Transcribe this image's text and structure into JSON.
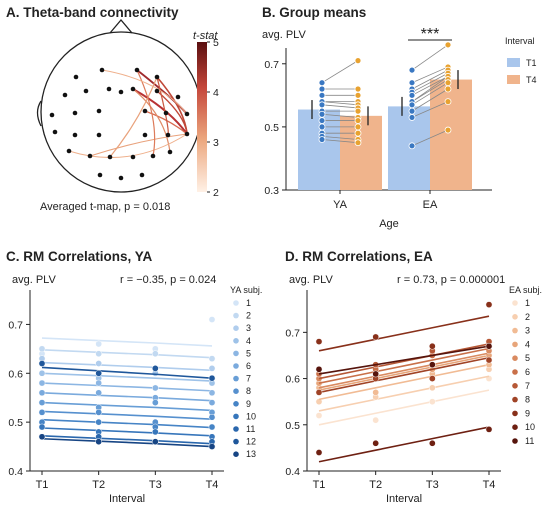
{
  "panels": {
    "a": {
      "title": "A. Theta-band connectivity",
      "caption": "Averaged t-map, p = 0.018",
      "colorbar": {
        "label": "t-stat",
        "ticks": [
          "5",
          "4",
          "3",
          "2"
        ],
        "range": [
          2,
          5
        ]
      }
    },
    "b": {
      "title": "B. Group means"
    },
    "c": {
      "title": "C. RM Correlations, YA"
    },
    "d": {
      "title": "D. RM Correlations, EA"
    }
  },
  "chart_data": [
    {
      "panel": "A",
      "type": "other",
      "description_of_marks": "Head topomap with electrode dots and significant connections colored by t-stat",
      "colorbar_label": "t-stat",
      "colorbar_range": [
        2,
        5
      ],
      "caption": "Averaged t-map, p = 0.018"
    },
    {
      "panel": "B",
      "type": "bar",
      "title": "B. Group means",
      "ylabel": "avg. PLV",
      "xlabel": "Age",
      "categories": [
        "YA",
        "EA"
      ],
      "ylim": [
        0.3,
        0.75
      ],
      "yticks": [
        "0.3",
        "0.5",
        "0.7"
      ],
      "legend_title": "Interval",
      "significance": "***",
      "series": [
        {
          "name": "T1",
          "color": "#a9c6ec",
          "values": [
            0.555,
            0.565
          ],
          "err": [
            0.03,
            0.03
          ],
          "points": [
            [
              0.64,
              0.62,
              0.6,
              0.58,
              0.58,
              0.57,
              0.55,
              0.54,
              0.52,
              0.5,
              0.48,
              0.47,
              0.46
            ],
            [
              0.68,
              0.64,
              0.62,
              0.61,
              0.6,
              0.58,
              0.58,
              0.57,
              0.55,
              0.53,
              0.44
            ]
          ]
        },
        {
          "name": "T4",
          "color": "#f0b48c",
          "values": [
            0.535,
            0.65
          ],
          "err": [
            0.03,
            0.03
          ],
          "points": [
            [
              0.71,
              0.62,
              0.6,
              0.58,
              0.57,
              0.56,
              0.55,
              0.53,
              0.52,
              0.5,
              0.48,
              0.46,
              0.45
            ],
            [
              0.76,
              0.69,
              0.68,
              0.67,
              0.66,
              0.66,
              0.65,
              0.64,
              0.62,
              0.58,
              0.49
            ]
          ]
        }
      ]
    },
    {
      "panel": "C",
      "type": "line",
      "title": "C. RM Correlations, YA",
      "ylabel": "avg. PLV",
      "xlabel": "Interval",
      "stat_text": "r = −0.35, p = 0.024",
      "x": [
        "T1",
        "T2",
        "T3",
        "T4"
      ],
      "ylim": [
        0.4,
        0.75
      ],
      "yticks": [
        "0.4",
        "0.5",
        "0.6",
        "0.7"
      ],
      "legend_title": "YA subj.",
      "series": [
        {
          "name": "1",
          "color": "#d4e5f7",
          "line": [
            0.672,
            0.667,
            0.662,
            0.656
          ],
          "points": [
            0.64,
            0.66,
            0.65,
            0.71
          ]
        },
        {
          "name": "2",
          "color": "#c2d9f1",
          "line": [
            0.648,
            0.643,
            0.638,
            0.632
          ],
          "points": [
            0.65,
            0.64,
            0.64,
            0.63
          ]
        },
        {
          "name": "3",
          "color": "#b0cded",
          "line": [
            0.622,
            0.617,
            0.612,
            0.606
          ],
          "points": [
            0.63,
            0.62,
            0.6,
            0.61
          ]
        },
        {
          "name": "4",
          "color": "#9ec2e8",
          "line": [
            0.6,
            0.595,
            0.59,
            0.584
          ],
          "points": [
            0.6,
            0.59,
            0.6,
            0.58
          ]
        },
        {
          "name": "5",
          "color": "#8cb6e3",
          "line": [
            0.58,
            0.575,
            0.57,
            0.564
          ],
          "points": [
            0.58,
            0.58,
            0.57,
            0.56
          ]
        },
        {
          "name": "6",
          "color": "#7aaadd",
          "line": [
            0.56,
            0.555,
            0.55,
            0.544
          ],
          "points": [
            0.56,
            0.56,
            0.55,
            0.54
          ]
        },
        {
          "name": "7",
          "color": "#689ed6",
          "line": [
            0.54,
            0.535,
            0.53,
            0.524
          ],
          "points": [
            0.54,
            0.53,
            0.54,
            0.52
          ]
        },
        {
          "name": "8",
          "color": "#5690ce",
          "line": [
            0.522,
            0.517,
            0.512,
            0.506
          ],
          "points": [
            0.52,
            0.52,
            0.5,
            0.51
          ]
        },
        {
          "name": "9",
          "color": "#4684c6",
          "line": [
            0.505,
            0.5,
            0.495,
            0.489
          ],
          "points": [
            0.5,
            0.5,
            0.49,
            0.49
          ]
        },
        {
          "name": "10",
          "color": "#3776bb",
          "line": [
            0.488,
            0.483,
            0.478,
            0.472
          ],
          "points": [
            0.49,
            0.48,
            0.48,
            0.47
          ]
        },
        {
          "name": "11",
          "color": "#2a67ad",
          "line": [
            0.472,
            0.467,
            0.462,
            0.456
          ],
          "points": [
            0.47,
            0.47,
            0.46,
            0.46
          ]
        },
        {
          "name": "12",
          "color": "#1f579b",
          "line": [
            0.612,
            0.605,
            0.598,
            0.59
          ],
          "points": [
            0.62,
            0.6,
            0.61,
            0.59
          ]
        },
        {
          "name": "13",
          "color": "#174584",
          "line": [
            0.466,
            0.461,
            0.456,
            0.45
          ],
          "points": [
            0.47,
            0.46,
            0.46,
            0.45
          ]
        }
      ]
    },
    {
      "panel": "D",
      "type": "line",
      "title": "D. RM Correlations, EA",
      "ylabel": "avg. PLV",
      "xlabel": "Interval",
      "stat_text": "r = 0.73, p = 0.000001",
      "x": [
        "T1",
        "T2",
        "T3",
        "T4"
      ],
      "ylim": [
        0.4,
        0.77
      ],
      "yticks": [
        "0.4",
        "0.5",
        "0.6",
        "0.7"
      ],
      "legend_title": "EA subj.",
      "series": [
        {
          "name": "1",
          "color": "#fbe3d0",
          "line": [
            0.5,
            0.525,
            0.55,
            0.575
          ],
          "points": [
            0.52,
            0.51,
            0.55,
            0.6
          ]
        },
        {
          "name": "2",
          "color": "#f7cfb0",
          "line": [
            0.53,
            0.555,
            0.58,
            0.605
          ],
          "points": [
            0.55,
            0.56,
            0.58,
            0.62
          ]
        },
        {
          "name": "3",
          "color": "#f1bb94",
          "line": [
            0.555,
            0.58,
            0.605,
            0.63
          ],
          "points": [
            0.58,
            0.57,
            0.61,
            0.63
          ]
        },
        {
          "name": "4",
          "color": "#e7a57a",
          "line": [
            0.575,
            0.6,
            0.625,
            0.65
          ],
          "points": [
            0.59,
            0.6,
            0.62,
            0.65
          ]
        },
        {
          "name": "5",
          "color": "#d98a60",
          "line": [
            0.58,
            0.605,
            0.63,
            0.655
          ],
          "points": [
            0.6,
            0.61,
            0.63,
            0.66
          ]
        },
        {
          "name": "6",
          "color": "#c97049",
          "line": [
            0.59,
            0.615,
            0.64,
            0.665
          ],
          "points": [
            0.61,
            0.62,
            0.65,
            0.67
          ]
        },
        {
          "name": "7",
          "color": "#b65836",
          "line": [
            0.6,
            0.625,
            0.65,
            0.675
          ],
          "points": [
            0.62,
            0.63,
            0.66,
            0.68
          ]
        },
        {
          "name": "8",
          "color": "#a04326",
          "line": [
            0.57,
            0.595,
            0.62,
            0.645
          ],
          "points": [
            0.57,
            0.6,
            0.6,
            0.64
          ]
        },
        {
          "name": "9",
          "color": "#88301a",
          "line": [
            0.66,
            0.685,
            0.71,
            0.735
          ],
          "points": [
            0.68,
            0.69,
            0.67,
            0.76
          ]
        },
        {
          "name": "10",
          "color": "#6e2012",
          "line": [
            0.42,
            0.445,
            0.47,
            0.495
          ],
          "points": [
            0.44,
            0.46,
            0.46,
            0.49
          ]
        },
        {
          "name": "11",
          "color": "#56140c",
          "line": [
            0.61,
            0.63,
            0.65,
            0.67
          ],
          "points": [
            0.62,
            0.61,
            0.63,
            0.67
          ]
        }
      ]
    }
  ]
}
